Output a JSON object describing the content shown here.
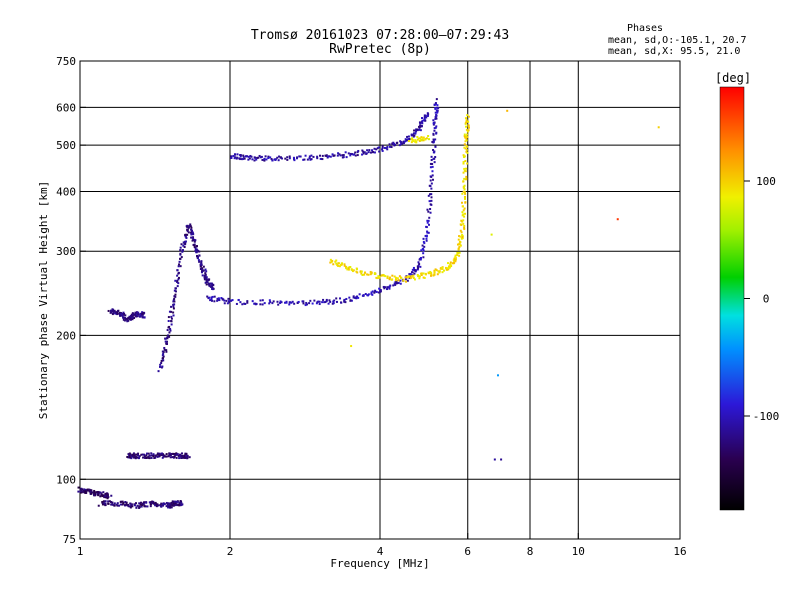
{
  "chart_data": {
    "type": "scatter",
    "title": "Tromsø 20161023 07:28:00–07:29:43",
    "subtitle": "RwPretec (8p)",
    "xlabel": "Frequency [MHz]",
    "ylabel": "Stationary phase Virtual Height [km]",
    "x_scale": "log",
    "y_scale": "log",
    "xlim": [
      1,
      16
    ],
    "ylim": [
      75,
      750
    ],
    "x_ticks": [
      1,
      2,
      4,
      6,
      8,
      10,
      16
    ],
    "y_ticks": [
      75,
      100,
      200,
      300,
      400,
      500,
      600,
      750
    ],
    "x_gridlines": [
      2,
      4,
      6,
      8,
      10
    ],
    "y_gridlines": [
      100,
      200,
      300,
      400,
      500,
      600
    ],
    "grid": true,
    "phase_box": {
      "title": "Phases",
      "line1": "mean, sd,O:-105.1, 20.7",
      "line2": "mean, sd,X:  95.5, 21.0"
    },
    "colorbar": {
      "label": "[deg]",
      "range": [
        -180,
        180
      ],
      "ticks": [
        100,
        0,
        -100
      ]
    },
    "colors": {
      "o_mode": "#3a2ad0",
      "o_mode_dark": "#5a18a8",
      "x_mode": "#f0b400"
    },
    "traces": [
      {
        "mode": "O",
        "phase": -130,
        "points": [
          [
            1.0,
            95
          ],
          [
            1.05,
            94
          ],
          [
            1.1,
            93
          ],
          [
            1.15,
            92
          ]
        ]
      },
      {
        "mode": "O",
        "phase": -125,
        "points": [
          [
            1.1,
            89
          ],
          [
            1.2,
            89
          ],
          [
            1.3,
            88
          ],
          [
            1.4,
            89
          ],
          [
            1.5,
            88
          ],
          [
            1.55,
            89
          ],
          [
            1.6,
            89
          ]
        ]
      },
      {
        "mode": "O",
        "phase": -120,
        "points": [
          [
            1.15,
            225
          ],
          [
            1.2,
            222
          ],
          [
            1.25,
            216
          ],
          [
            1.3,
            222
          ],
          [
            1.35,
            220
          ]
        ]
      },
      {
        "mode": "O",
        "phase": -125,
        "points": [
          [
            1.25,
            112
          ],
          [
            1.3,
            112
          ],
          [
            1.4,
            112
          ],
          [
            1.5,
            112
          ],
          [
            1.6,
            112
          ],
          [
            1.65,
            112
          ]
        ]
      },
      {
        "mode": "O",
        "phase": -120,
        "points": [
          [
            1.45,
            170
          ],
          [
            1.5,
            200
          ],
          [
            1.55,
            240
          ],
          [
            1.6,
            300
          ],
          [
            1.65,
            340
          ],
          [
            1.7,
            310
          ],
          [
            1.75,
            280
          ],
          [
            1.8,
            260
          ],
          [
            1.85,
            250
          ]
        ]
      },
      {
        "mode": "O",
        "phase": -105,
        "points": [
          [
            1.8,
            240
          ],
          [
            2.0,
            235
          ],
          [
            2.5,
            234
          ],
          [
            3.0,
            234
          ],
          [
            3.5,
            238
          ],
          [
            4.0,
            248
          ],
          [
            4.5,
            262
          ],
          [
            4.8,
            280
          ],
          [
            5.0,
            340
          ],
          [
            5.1,
            450
          ],
          [
            5.15,
            550
          ],
          [
            5.2,
            620
          ]
        ]
      },
      {
        "mode": "O",
        "phase": -110,
        "points": [
          [
            2.0,
            475
          ],
          [
            2.2,
            470
          ],
          [
            2.5,
            468
          ],
          [
            3.0,
            472
          ],
          [
            3.5,
            478
          ],
          [
            4.0,
            490
          ],
          [
            4.5,
            510
          ],
          [
            4.8,
            545
          ],
          [
            5.0,
            585
          ]
        ]
      },
      {
        "mode": "X",
        "phase": 95,
        "points": [
          [
            3.2,
            285
          ],
          [
            3.5,
            275
          ],
          [
            4.0,
            265
          ],
          [
            4.5,
            262
          ],
          [
            5.0,
            268
          ],
          [
            5.4,
            275
          ],
          [
            5.7,
            290
          ],
          [
            5.85,
            330
          ],
          [
            5.9,
            400
          ],
          [
            5.95,
            500
          ],
          [
            6.0,
            580
          ]
        ]
      },
      {
        "mode": "X",
        "phase": 90,
        "points": [
          [
            4.6,
            510
          ],
          [
            5.0,
            520
          ]
        ]
      }
    ],
    "scatter_points": [
      {
        "x": 6.8,
        "y": 110,
        "phase": -110
      },
      {
        "x": 6.9,
        "y": 165,
        "phase": -40
      },
      {
        "x": 7.0,
        "y": 110,
        "phase": -115
      },
      {
        "x": 7.2,
        "y": 590,
        "phase": 110
      },
      {
        "x": 12.0,
        "y": 350,
        "phase": 160
      },
      {
        "x": 14.5,
        "y": 545,
        "phase": 100
      },
      {
        "x": 6.7,
        "y": 325,
        "phase": 80
      },
      {
        "x": 3.5,
        "y": 190,
        "phase": 90
      }
    ]
  }
}
